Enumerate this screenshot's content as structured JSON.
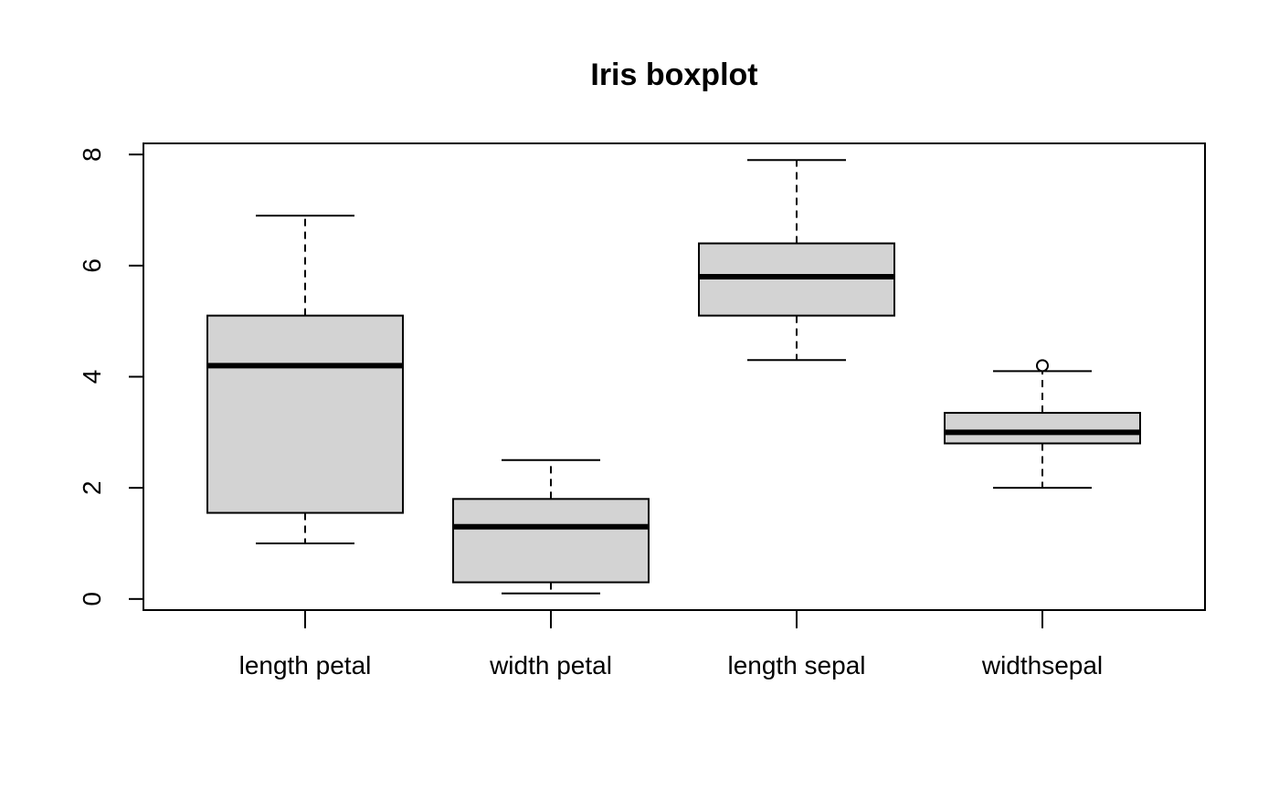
{
  "chart_data": {
    "type": "boxplot",
    "title": "Iris boxplot",
    "xlabel": "",
    "ylabel": "",
    "ylim": [
      -0.2,
      8.2
    ],
    "yticks": [
      0,
      2,
      4,
      6,
      8
    ],
    "grid": false,
    "box_fill": "#d3d3d3",
    "line_color": "#000000",
    "categories": [
      "length petal",
      "width petal",
      "length sepal",
      "widthsepal"
    ],
    "boxes": [
      {
        "name": "length petal",
        "min": 1.0,
        "q1": 1.55,
        "median": 4.2,
        "q3": 5.1,
        "max": 6.9,
        "outliers": []
      },
      {
        "name": "width petal",
        "min": 0.1,
        "q1": 0.3,
        "median": 1.3,
        "q3": 1.8,
        "max": 2.5,
        "outliers": []
      },
      {
        "name": "length sepal",
        "min": 4.3,
        "q1": 5.1,
        "median": 5.8,
        "q3": 6.4,
        "max": 7.9,
        "outliers": []
      },
      {
        "name": "widthsepal",
        "min": 2.0,
        "q1": 2.8,
        "median": 3.0,
        "q3": 3.35,
        "max": 4.1,
        "outliers": [
          4.2
        ]
      }
    ]
  }
}
